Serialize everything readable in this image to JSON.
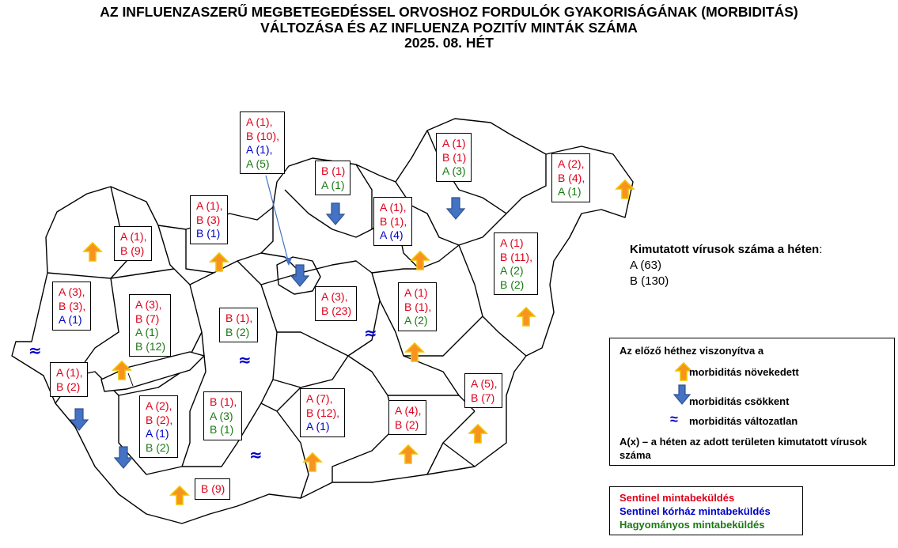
{
  "title": {
    "line1": "AZ INFLUENZASZERŰ MEGBETEGEDÉSSEL ORVOSHOZ FORDULÓK GYAKORISÁGÁNAK (MORBIDITÁS)",
    "line2": "VÁLTOZÁSA ÉS AZ INFLUENZA POZITÍV MINTÁK SZÁMA",
    "line3": "2025. 08. HÉT"
  },
  "colors": {
    "sentinel": "#e0001b",
    "hospital": "#0000c8",
    "traditional": "#1a7a14",
    "arrow_up": "#f7931e",
    "arrow_down": "#4472c4"
  },
  "regions": [
    {
      "id": "budapest",
      "trend": "down",
      "lines": [
        {
          "t": "A (1),",
          "c": "red"
        },
        {
          "t": "B (10),",
          "c": "red"
        },
        {
          "t": "A (1),",
          "c": "blue"
        },
        {
          "t": "A (5)",
          "c": "green"
        }
      ]
    },
    {
      "id": "nograd",
      "trend": "down",
      "lines": [
        {
          "t": "B (1)",
          "c": "red"
        },
        {
          "t": "A (1)",
          "c": "green"
        }
      ]
    },
    {
      "id": "borsod",
      "trend": "down",
      "lines": [
        {
          "t": "A (1)",
          "c": "red"
        },
        {
          "t": "B (1)",
          "c": "red"
        },
        {
          "t": "A (3)",
          "c": "green"
        }
      ]
    },
    {
      "id": "szabolcs",
      "trend": "up",
      "lines": [
        {
          "t": "A (2),",
          "c": "red"
        },
        {
          "t": "B (4),",
          "c": "red"
        },
        {
          "t": "A (1)",
          "c": "green"
        }
      ]
    },
    {
      "id": "heves",
      "trend": "up",
      "lines": [
        {
          "t": "A (1),",
          "c": "red"
        },
        {
          "t": "B (1),",
          "c": "red"
        },
        {
          "t": "A (4)",
          "c": "blue"
        }
      ]
    },
    {
      "id": "komarom",
      "trend": "up",
      "lines": [
        {
          "t": "A (1),",
          "c": "red"
        },
        {
          "t": "B (3)",
          "c": "red"
        },
        {
          "t": "B (1)",
          "c": "blue"
        }
      ]
    },
    {
      "id": "gyor",
      "trend": "up",
      "lines": [
        {
          "t": "A (1),",
          "c": "red"
        },
        {
          "t": "B (9)",
          "c": "red"
        }
      ]
    },
    {
      "id": "vas",
      "trend": "same",
      "lines": [
        {
          "t": "A (3),",
          "c": "red"
        },
        {
          "t": "B (3),",
          "c": "red"
        },
        {
          "t": "A (1)",
          "c": "blue"
        }
      ]
    },
    {
      "id": "veszprem",
      "trend": "up",
      "lines": [
        {
          "t": "A (3),",
          "c": "red"
        },
        {
          "t": "B (7)",
          "c": "red"
        },
        {
          "t": "A (1)",
          "c": "green"
        },
        {
          "t": "B (12)",
          "c": "green"
        }
      ]
    },
    {
      "id": "fejer",
      "trend": "same",
      "lines": [
        {
          "t": "B (1),",
          "c": "red"
        },
        {
          "t": "B (2)",
          "c": "green"
        }
      ]
    },
    {
      "id": "pest",
      "trend": "same",
      "lines": [
        {
          "t": "A (3),",
          "c": "red"
        },
        {
          "t": "B (23)",
          "c": "red"
        }
      ]
    },
    {
      "id": "jasz",
      "trend": "up",
      "lines": [
        {
          "t": "A (1)",
          "c": "red"
        },
        {
          "t": "B (1),",
          "c": "red"
        },
        {
          "t": "A (2)",
          "c": "green"
        }
      ]
    },
    {
      "id": "hajdu",
      "trend": "up",
      "lines": [
        {
          "t": "A (1)",
          "c": "red"
        },
        {
          "t": "B (11),",
          "c": "red"
        },
        {
          "t": "A (2)",
          "c": "green"
        },
        {
          "t": "B (2)",
          "c": "green"
        }
      ]
    },
    {
      "id": "zala",
      "trend": "down",
      "lines": [
        {
          "t": "A (1),",
          "c": "red"
        },
        {
          "t": "B (2)",
          "c": "red"
        }
      ]
    },
    {
      "id": "somogy",
      "trend": "down",
      "lines": [
        {
          "t": "A (2),",
          "c": "red"
        },
        {
          "t": "B (2),",
          "c": "red"
        },
        {
          "t": "A (1)",
          "c": "blue"
        },
        {
          "t": "B (2)",
          "c": "green"
        }
      ]
    },
    {
      "id": "tolna",
      "trend": "same",
      "lines": [
        {
          "t": "B (1),",
          "c": "red"
        },
        {
          "t": "A (3)",
          "c": "green"
        },
        {
          "t": "B (1)",
          "c": "green"
        }
      ]
    },
    {
      "id": "bacs",
      "trend": "up",
      "lines": [
        {
          "t": "A (7),",
          "c": "red"
        },
        {
          "t": "B (12),",
          "c": "red"
        },
        {
          "t": "A (1)",
          "c": "blue"
        }
      ]
    },
    {
      "id": "csongrad",
      "trend": "up",
      "lines": [
        {
          "t": "A (4),",
          "c": "red"
        },
        {
          "t": "B (2)",
          "c": "red"
        }
      ]
    },
    {
      "id": "bekes",
      "trend": "up",
      "lines": [
        {
          "t": "A (5),",
          "c": "red"
        },
        {
          "t": "B (7)",
          "c": "red"
        }
      ]
    },
    {
      "id": "baranya",
      "trend": "up",
      "lines": [
        {
          "t": "B (9)",
          "c": "red"
        }
      ]
    }
  ],
  "summary": {
    "heading": "Kimutatott vírusok száma a héten",
    "colon": ":",
    "a": "A (63)",
    "b": "B (130)"
  },
  "legend": {
    "title": "Az előző héthez viszonyítva a",
    "up": "morbiditás növekedett",
    "down": "morbiditás csökkent",
    "same": "morbiditás változatlan",
    "same_symbol": "≈",
    "note": "A(x) – a héten az adott területen kimutatott vírusok száma"
  },
  "types": {
    "sentinel": "Sentinel mintabeküldés",
    "hospital": "Sentinel kórház mintabeküldés",
    "traditional": "Hagyományos mintabeküldés"
  }
}
